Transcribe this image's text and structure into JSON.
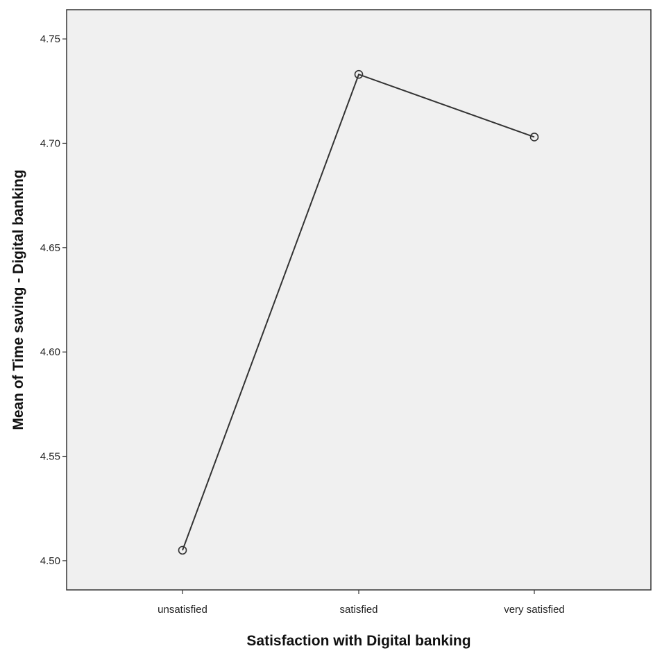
{
  "chart_data": {
    "type": "line",
    "title": "",
    "xlabel": "Satisfaction with Digital banking",
    "ylabel": "Mean of Time saving - Digital banking",
    "categories": [
      "unsatisfied",
      "satisfied",
      "very satisfied"
    ],
    "series": [
      {
        "values": [
          4.505,
          4.733,
          4.703
        ]
      }
    ],
    "ylim": [
      4.486,
      4.764
    ],
    "yticks": [
      4.5,
      4.55,
      4.6,
      4.65,
      4.7,
      4.75
    ],
    "ytick_labels": [
      "4.50",
      "4.55",
      "4.60",
      "4.65",
      "4.70",
      "4.75"
    ],
    "grid": false,
    "legend": "none",
    "colors": {
      "plot_background": "#f0f0f0",
      "line": "#333333",
      "frame": "#333333"
    }
  }
}
